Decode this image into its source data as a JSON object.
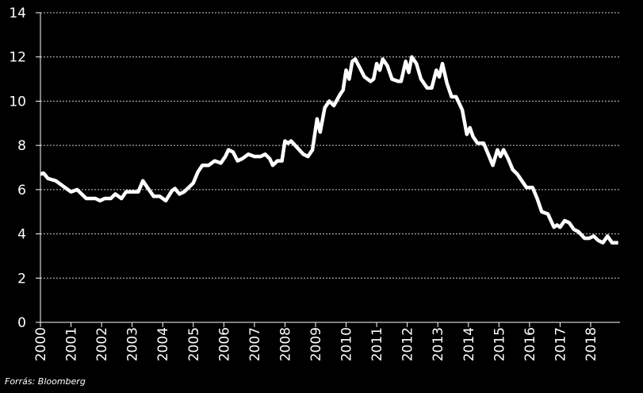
{
  "chart_data": {
    "type": "line",
    "source": "Forrás: Bloomberg",
    "x": [
      2000.0,
      2000.1,
      2000.25,
      2000.5,
      2000.7,
      2000.9,
      2001.0,
      2001.2,
      2001.35,
      2001.5,
      2001.8,
      2001.95,
      2002.1,
      2002.3,
      2002.45,
      2002.65,
      2002.8,
      2003.0,
      2003.2,
      2003.35,
      2003.5,
      2003.7,
      2003.9,
      2004.1,
      2004.3,
      2004.4,
      2004.55,
      2004.7,
      2004.85,
      2005.0,
      2005.15,
      2005.3,
      2005.5,
      2005.7,
      2005.9,
      2006.05,
      2006.15,
      2006.3,
      2006.45,
      2006.6,
      2006.8,
      2007.0,
      2007.2,
      2007.35,
      2007.5,
      2007.6,
      2007.75,
      2007.9,
      2008.0,
      2008.1,
      2008.2,
      2008.4,
      2008.6,
      2008.75,
      2008.9,
      2009.05,
      2009.15,
      2009.3,
      2009.45,
      2009.6,
      2009.8,
      2009.9,
      2010.0,
      2010.1,
      2010.2,
      2010.3,
      2010.45,
      2010.6,
      2010.8,
      2010.9,
      2011.0,
      2011.1,
      2011.2,
      2011.35,
      2011.5,
      2011.7,
      2011.8,
      2011.95,
      2012.05,
      2012.15,
      2012.3,
      2012.45,
      2012.65,
      2012.8,
      2012.95,
      2013.05,
      2013.15,
      2013.3,
      2013.45,
      2013.6,
      2013.7,
      2013.8,
      2013.95,
      2014.05,
      2014.15,
      2014.3,
      2014.5,
      2014.65,
      2014.8,
      2014.95,
      2015.05,
      2015.15,
      2015.3,
      2015.45,
      2015.6,
      2015.75,
      2015.9,
      2016.1,
      2016.25,
      2016.4,
      2016.6,
      2016.8,
      2016.9,
      2017.0,
      2017.15,
      2017.3,
      2017.45,
      2017.6,
      2017.8,
      2017.95,
      2018.1,
      2018.25,
      2018.4,
      2018.55,
      2018.7,
      2018.9
    ],
    "series": [
      {
        "color": "#ffffff",
        "values": [
          6.7,
          6.75,
          6.5,
          6.4,
          6.2,
          6.0,
          5.9,
          6.0,
          5.8,
          5.6,
          5.6,
          5.5,
          5.6,
          5.6,
          5.8,
          5.6,
          5.9,
          5.9,
          5.9,
          6.4,
          6.1,
          5.7,
          5.7,
          5.5,
          5.95,
          6.05,
          5.8,
          5.9,
          6.1,
          6.3,
          6.8,
          7.1,
          7.1,
          7.3,
          7.2,
          7.5,
          7.8,
          7.7,
          7.3,
          7.4,
          7.6,
          7.5,
          7.5,
          7.6,
          7.4,
          7.1,
          7.3,
          7.3,
          8.2,
          8.1,
          8.2,
          7.9,
          7.6,
          7.5,
          7.8,
          9.2,
          8.6,
          9.7,
          10.0,
          9.8,
          10.3,
          10.5,
          11.4,
          11.0,
          11.8,
          11.9,
          11.5,
          11.1,
          10.9,
          11.0,
          11.7,
          11.4,
          11.9,
          11.6,
          11.0,
          10.9,
          10.9,
          11.8,
          11.3,
          12.0,
          11.7,
          11.0,
          10.6,
          10.6,
          11.4,
          11.1,
          11.7,
          10.8,
          10.2,
          10.2,
          9.9,
          9.6,
          8.5,
          8.8,
          8.4,
          8.1,
          8.1,
          7.6,
          7.1,
          7.8,
          7.5,
          7.8,
          7.4,
          6.9,
          6.7,
          6.4,
          6.1,
          6.1,
          5.6,
          5.0,
          4.9,
          4.3,
          4.4,
          4.3,
          4.6,
          4.5,
          4.2,
          4.1,
          3.8,
          3.8,
          3.9,
          3.7,
          3.6,
          3.9,
          3.6,
          3.6
        ]
      }
    ],
    "xlim": [
      2000,
      2018.96
    ],
    "xticks": [
      2000,
      2001,
      2002,
      2003,
      2004,
      2005,
      2006,
      2007,
      2008,
      2009,
      2010,
      2011,
      2012,
      2013,
      2014,
      2015,
      2016,
      2017,
      2018
    ],
    "ylim": [
      0,
      14
    ],
    "yticks": [
      0,
      2,
      4,
      6,
      8,
      10,
      12,
      14
    ],
    "grid": true
  }
}
